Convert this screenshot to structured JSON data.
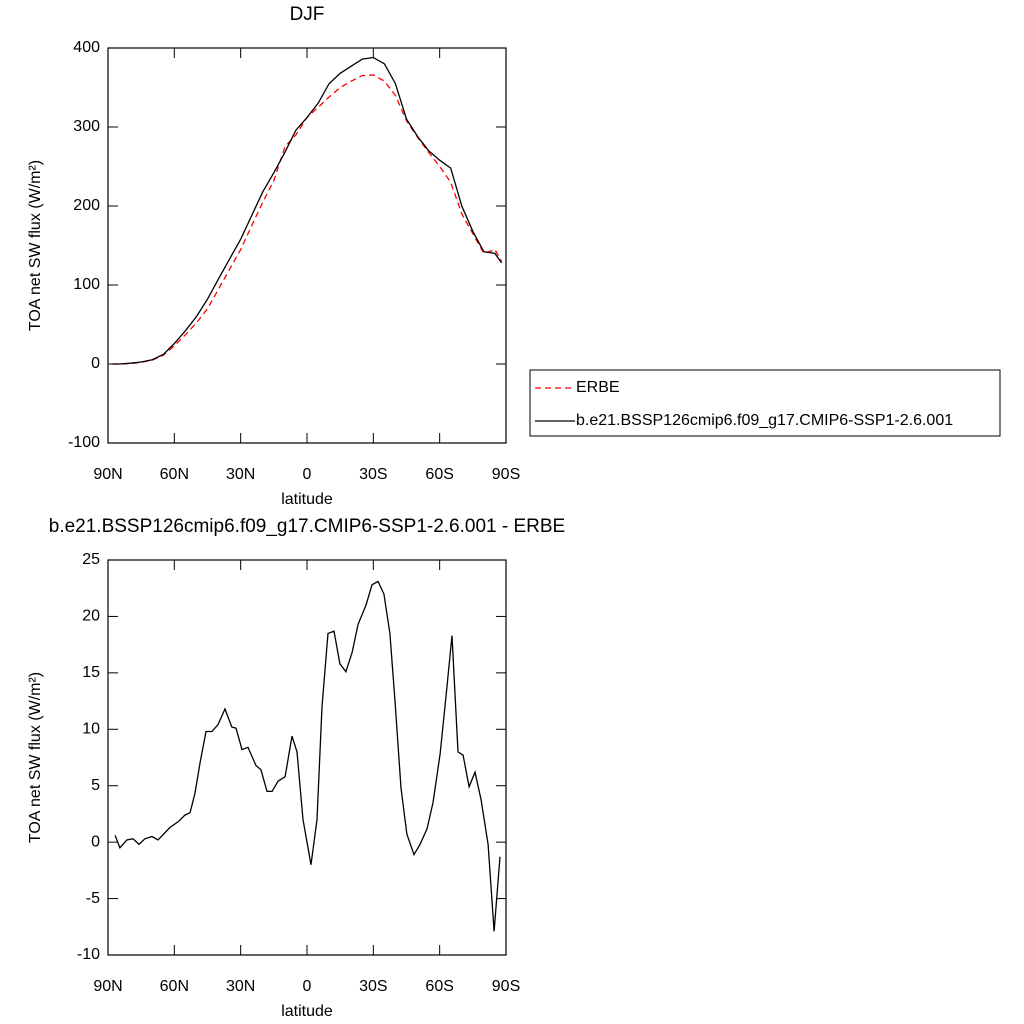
{
  "chart_data": [
    {
      "type": "line",
      "title": "DJF",
      "xlabel": "latitude",
      "ylabel": "TOA net SW flux (W/m²)",
      "x": [
        88,
        85,
        80,
        75,
        70,
        65,
        60,
        55,
        50,
        45,
        40,
        35,
        30,
        25,
        20,
        15,
        10,
        5,
        0,
        -5,
        -10,
        -15,
        -20,
        -25,
        -30,
        -35,
        -40,
        -45,
        -50,
        -55,
        -60,
        -65,
        -70,
        -75,
        -80,
        -85,
        -88
      ],
      "series": [
        {
          "name": "ERBE",
          "color": "#ff0000",
          "dash": true,
          "values": [
            0,
            0,
            0.5,
            2,
            5,
            11,
            23,
            37,
            52,
            70,
            95,
            120,
            145,
            175,
            205,
            232,
            275,
            290,
            312,
            325,
            338,
            350,
            358,
            365,
            366,
            358,
            340,
            308,
            287,
            268,
            250,
            230,
            190,
            165,
            140,
            145,
            130
          ]
        },
        {
          "name": "b.e21.BSSP126cmip6.f09_g17.CMIP6-SSP1-2.6.001",
          "color": "#000000",
          "dash": false,
          "values": [
            0,
            0,
            1,
            2.5,
            5.5,
            12,
            26,
            42,
            60,
            82,
            108,
            133,
            158,
            188,
            218,
            242,
            268,
            296,
            312,
            330,
            355,
            368,
            377,
            386,
            388,
            380,
            355,
            310,
            288,
            270,
            258,
            248,
            200,
            168,
            142,
            140,
            128
          ]
        }
      ],
      "xlim": [
        90,
        -90
      ],
      "xticks": [
        {
          "value": 90,
          "label": "90N"
        },
        {
          "value": 60,
          "label": "60N"
        },
        {
          "value": 30,
          "label": "30N"
        },
        0,
        {
          "value": -30,
          "label": "30S"
        },
        {
          "value": -60,
          "label": "60S"
        },
        {
          "value": -90,
          "label": "90S"
        }
      ],
      "ylim": [
        -100,
        400
      ],
      "yticks": [
        -100,
        0,
        100,
        200,
        300,
        400
      ],
      "legend": "right"
    },
    {
      "type": "line",
      "title": "b.e21.BSSP126cmip6.f09_g17.CMIP6-SSP1-2.6.001 - ERBE",
      "xlabel": "latitude",
      "ylabel": "TOA net SW flux (W/m²)",
      "x": [
        86.8,
        84.6,
        81.4,
        78.7,
        76.0,
        73.3,
        70.1,
        67.4,
        62.0,
        58.3,
        55.2,
        52.9,
        50.7,
        48.4,
        45.7,
        43.0,
        40.3,
        37.1,
        34.0,
        32.1,
        29.4,
        26.7,
        23.1,
        20.8,
        18.1,
        15.8,
        13.1,
        9.9,
        6.8,
        4.5,
        1.8,
        -1.8,
        -4.5,
        -6.8,
        -9.5,
        -12.2,
        -14.9,
        -17.6,
        -20.4,
        -23.1,
        -26.7,
        -29.4,
        -32.1,
        -34.8,
        -37.5,
        -39.8,
        -42.5,
        -45.2,
        -48.4,
        -51.1,
        -54.3,
        -57.0,
        -60.2,
        -62.9,
        -65.6,
        -68.3,
        -70.6,
        -73.3,
        -76.0,
        -78.7,
        -81.9,
        -84.6,
        -87.3
      ],
      "series": [
        {
          "color": "#000000",
          "values": [
            0.6,
            -0.5,
            0.2,
            0.3,
            -0.2,
            0.3,
            0.5,
            0.2,
            1.3,
            1.8,
            2.4,
            2.6,
            4.3,
            7,
            9.8,
            9.8,
            10.4,
            11.8,
            10.2,
            10.1,
            8.2,
            8.4,
            6.8,
            6.4,
            4.5,
            4.5,
            5.4,
            5.8,
            9.4,
            8.0,
            2.0,
            -2.0,
            2.0,
            12.0,
            18.5,
            18.7,
            15.8,
            15.1,
            16.8,
            19.3,
            21.0,
            22.8,
            23.1,
            22.0,
            18.5,
            12.5,
            4.8,
            0.7,
            -1.1,
            -0.2,
            1.2,
            3.5,
            7.8,
            13.0,
            18.3,
            8.0,
            7.7,
            4.9,
            6.2,
            3.8,
            -0.2,
            -7.9,
            -1.3
          ]
        }
      ],
      "xlim": [
        90,
        -90
      ],
      "xticks": [
        {
          "value": 90,
          "label": "90N"
        },
        {
          "value": 60,
          "label": "60N"
        },
        {
          "value": 30,
          "label": "30N"
        },
        0,
        {
          "value": -30,
          "label": "30S"
        },
        {
          "value": -60,
          "label": "60S"
        },
        {
          "value": -90,
          "label": "90S"
        }
      ],
      "ylim": [
        -10,
        25
      ],
      "yticks": [
        -10,
        -5,
        0,
        5,
        10,
        15,
        20,
        25
      ]
    }
  ]
}
